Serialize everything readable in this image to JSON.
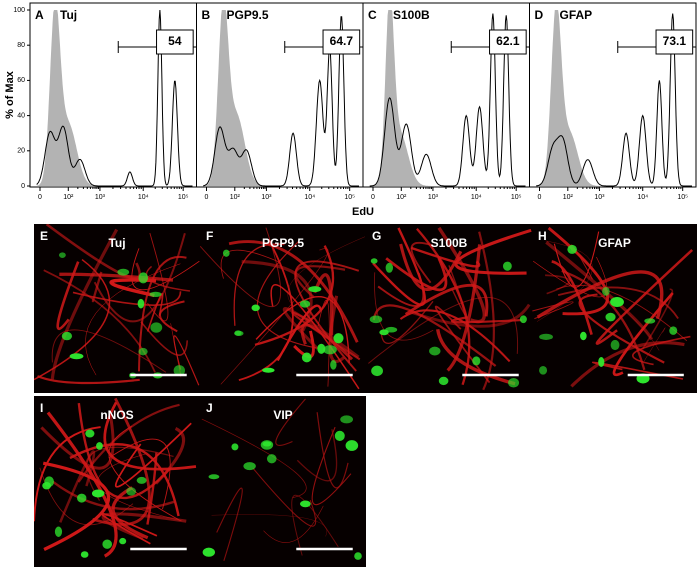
{
  "histograms": {
    "y_axis": {
      "label": "% of Max",
      "ticks": [
        "0",
        "20",
        "40",
        "60",
        "80",
        "100"
      ]
    },
    "x_axis": {
      "label": "EdU",
      "ticks": [
        "0",
        "10²",
        "10³",
        "10⁴",
        "10⁵"
      ]
    },
    "panels": [
      {
        "letter": "A",
        "marker": "Tuj",
        "gate": "54"
      },
      {
        "letter": "B",
        "marker": "PGP9.5",
        "gate": "64.7"
      },
      {
        "letter": "C",
        "marker": "S100B",
        "gate": "62.1"
      },
      {
        "letter": "D",
        "marker": "GFAP",
        "gate": "73.1"
      }
    ]
  },
  "images": [
    {
      "letter": "E",
      "marker": "Tuj"
    },
    {
      "letter": "F",
      "marker": "PGP9.5"
    },
    {
      "letter": "G",
      "marker": "S100B"
    },
    {
      "letter": "H",
      "marker": "GFAP"
    },
    {
      "letter": "I",
      "marker": "nNOS"
    },
    {
      "letter": "J",
      "marker": "VIP"
    }
  ]
}
